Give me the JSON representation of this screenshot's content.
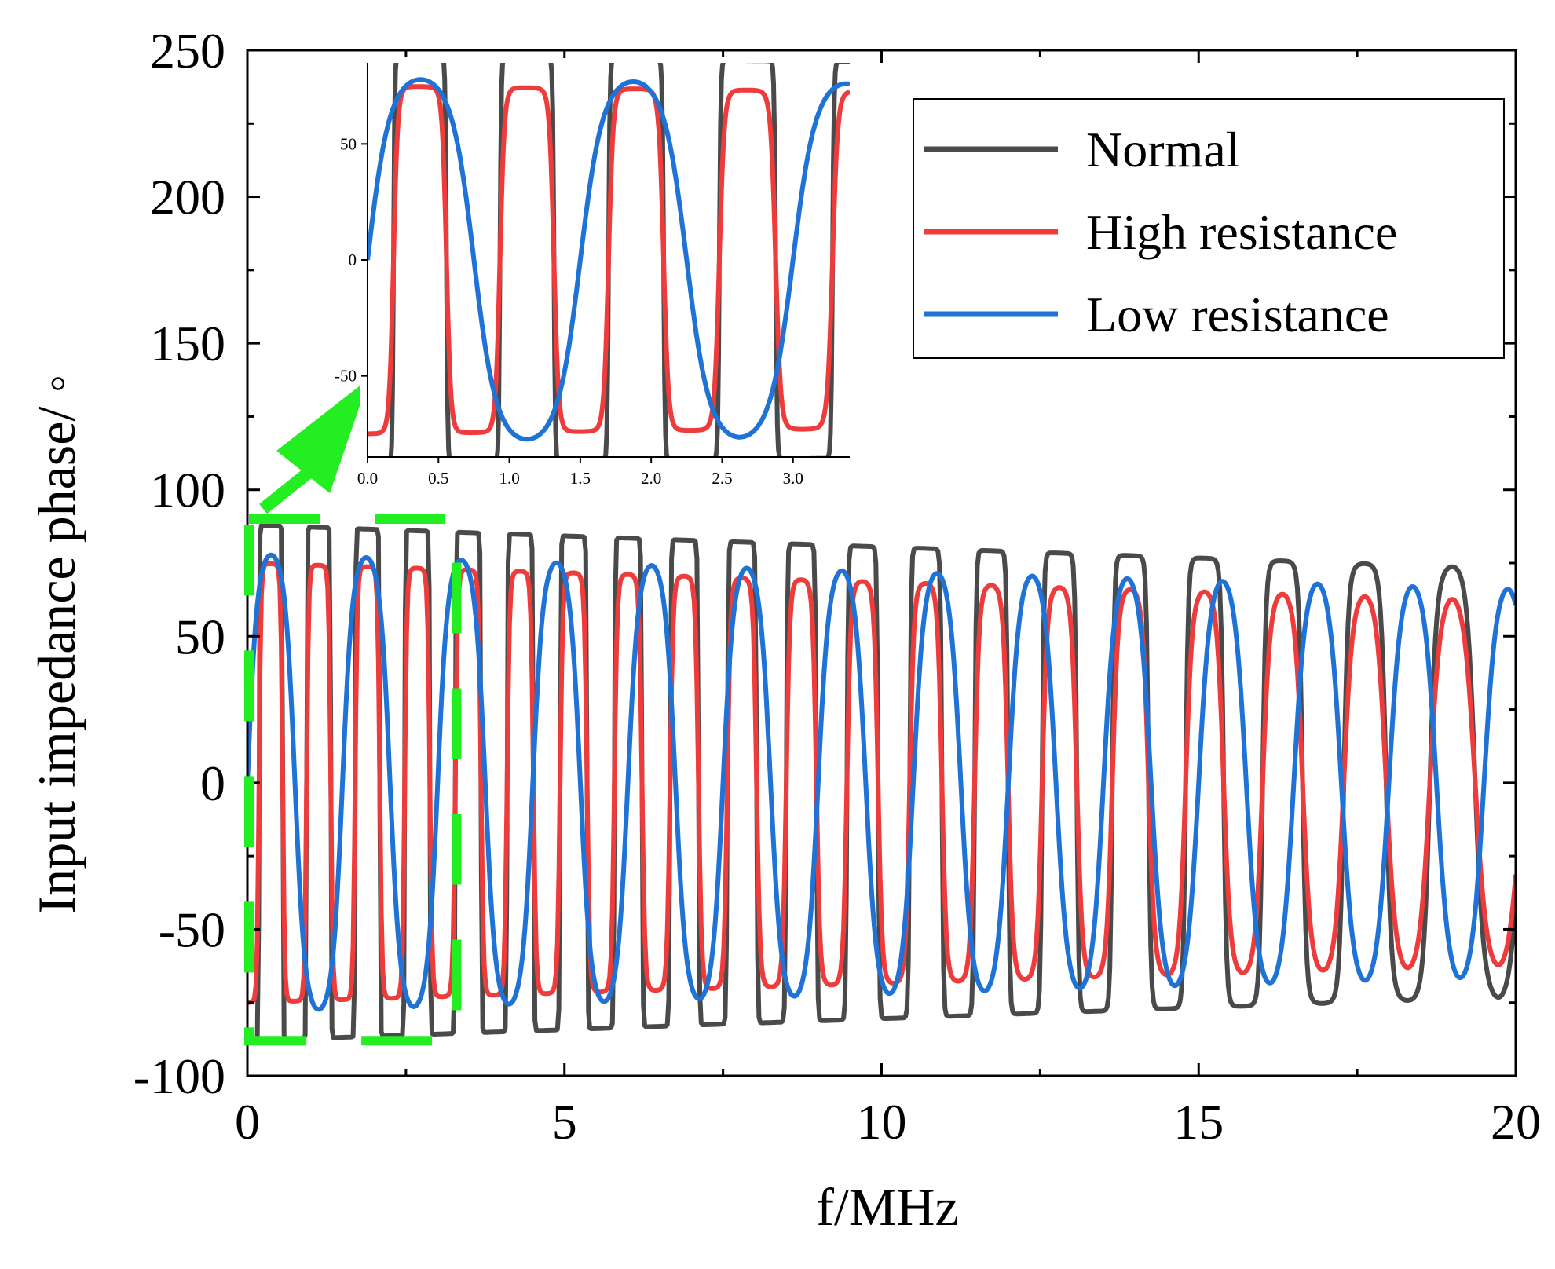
{
  "chart_data": {
    "type": "line",
    "xlabel": "f/MHz",
    "ylabel": "Input impedance phase/ ◦",
    "xlim": [
      0,
      20
    ],
    "ylim": [
      -100,
      250
    ],
    "x_ticks": [
      "0",
      "5",
      "10",
      "15",
      "20"
    ],
    "y_ticks": [
      "-100",
      "-50",
      "0",
      "50",
      "100",
      "150",
      "200",
      "250"
    ],
    "legend": {
      "position": "top-right",
      "entries": [
        "Normal",
        "High resistance",
        "Low resistance"
      ]
    },
    "colors": {
      "Normal": "#4a4a4a",
      "High resistance": "#ee3b3b",
      "Low resistance": "#1f73d6",
      "Highlight": "#22ee22"
    },
    "series": [
      {
        "name": "Normal",
        "model": "phase-sweep",
        "x_range": [
          0,
          20
        ],
        "period_start_MHz": 0.74,
        "period_end_MHz": 1.5,
        "amplitude_start": 88,
        "amplitude_end": 73,
        "shape_sharpness_start": 14,
        "shape_sharpness_end": 1.2,
        "phase_offset": -1.55
      },
      {
        "name": "High resistance",
        "model": "phase-sweep",
        "x_range": [
          0,
          20
        ],
        "period_start_MHz": 0.74,
        "period_end_MHz": 1.5,
        "amplitude_start": 75,
        "amplitude_end": 62,
        "shape_sharpness_start": 4,
        "shape_sharpness_end": 1.0,
        "phase_offset": -1.55
      },
      {
        "name": "Low resistance",
        "model": "phase-sweep",
        "x_range": [
          0,
          20
        ],
        "period_start_MHz": 1.5,
        "period_end_MHz": 1.5,
        "amplitude_start": 78,
        "amplitude_end": 66,
        "shape_sharpness_start": 1.4,
        "shape_sharpness_end": 1.0,
        "phase_offset": 0.0
      }
    ],
    "highlight": {
      "x_range": [
        0,
        3.3
      ],
      "y_range": [
        -88,
        90
      ],
      "style": "dashed",
      "arrow_to": "inset"
    },
    "inset": {
      "xlim": [
        0,
        3.4
      ],
      "ylim": [
        -85,
        85
      ],
      "x_ticks": [
        "0.0",
        "0.5",
        "1.0",
        "1.5",
        "2.0",
        "2.5",
        "3.0"
      ],
      "y_ticks": [
        "-50",
        "0",
        "50"
      ]
    }
  }
}
